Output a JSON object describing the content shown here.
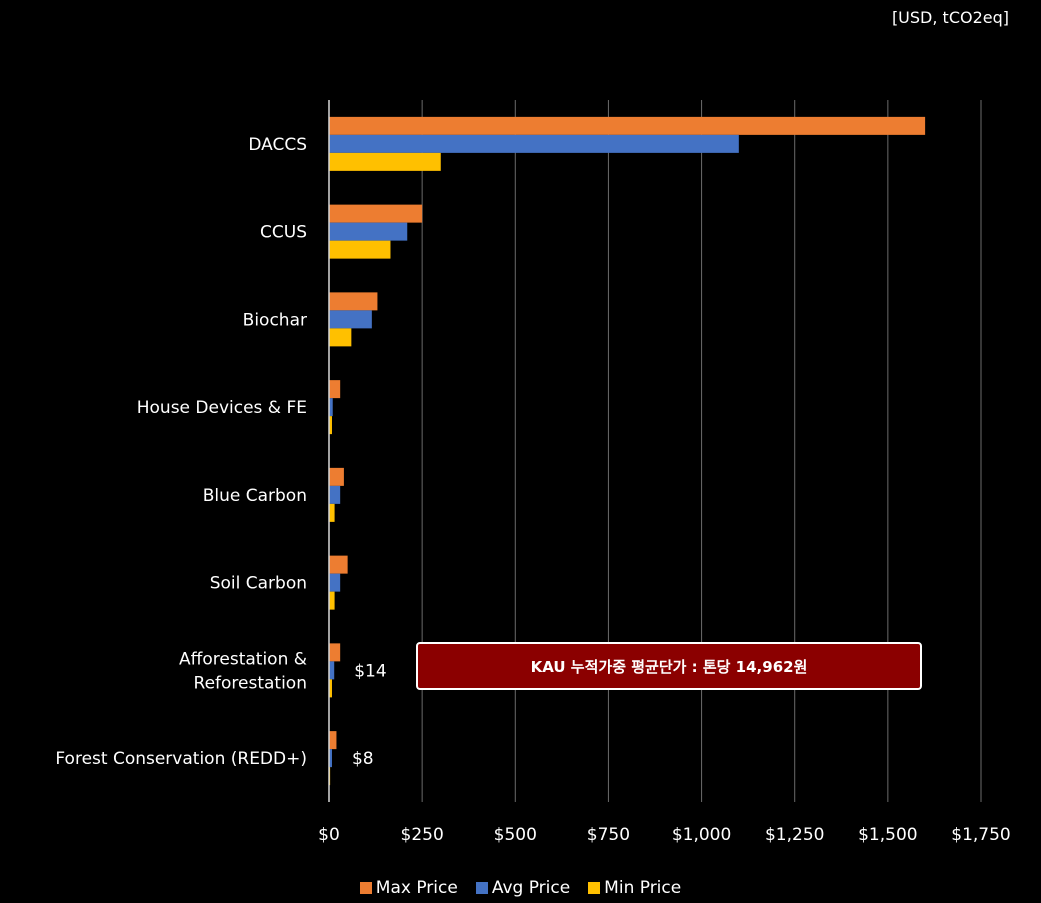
{
  "unit_label": "[USD, tCO2eq]",
  "kau_note": "KAU 누적가중 평균단가 : 톤당 14,962원",
  "colors": {
    "max": "#ed7d31",
    "avg": "#4472c4",
    "min": "#ffc000",
    "gridline": "#6b6b6b",
    "note_bg": "#8b0000"
  },
  "chart_data": {
    "type": "bar",
    "orientation": "horizontal",
    "categories": [
      "DACCS",
      "CCUS",
      "Biochar",
      "House Devices & FE",
      "Blue Carbon",
      "Soil Carbon",
      "Afforestation & Reforestation",
      "Forest Conservation (REDD+)"
    ],
    "category_lines": [
      [
        "DACCS"
      ],
      [
        "CCUS"
      ],
      [
        "Biochar"
      ],
      [
        "House Devices & FE"
      ],
      [
        "Blue Carbon"
      ],
      [
        "Soil Carbon"
      ],
      [
        "Afforestation &",
        "Reforestation"
      ],
      [
        "Forest Conservation (REDD+)"
      ]
    ],
    "series": [
      {
        "name": "Max Price",
        "color": "#ed7d31",
        "values": [
          1600,
          250,
          130,
          30,
          40,
          50,
          30,
          20
        ]
      },
      {
        "name": "Avg Price",
        "color": "#4472c4",
        "values": [
          1100,
          210,
          115,
          10,
          30,
          30,
          14,
          8
        ]
      },
      {
        "name": "Min Price",
        "color": "#ffc000",
        "values": [
          300,
          165,
          60,
          8,
          15,
          15,
          8,
          3
        ]
      }
    ],
    "data_labels": [
      {
        "category": "Afforestation & Reforestation",
        "series": "Avg Price",
        "text": "$14"
      },
      {
        "category": "Forest Conservation (REDD+)",
        "series": "Avg Price",
        "text": "$8"
      }
    ],
    "x_ticks": [
      0,
      250,
      500,
      750,
      1000,
      1250,
      1500,
      1750
    ],
    "x_tick_labels": [
      "$0",
      "$250",
      "$500",
      "$750",
      "$1,000",
      "$1,250",
      "$1,500",
      "$1,750"
    ],
    "xlim": [
      0,
      1750
    ],
    "grid": "vertical",
    "legend_position": "bottom"
  }
}
